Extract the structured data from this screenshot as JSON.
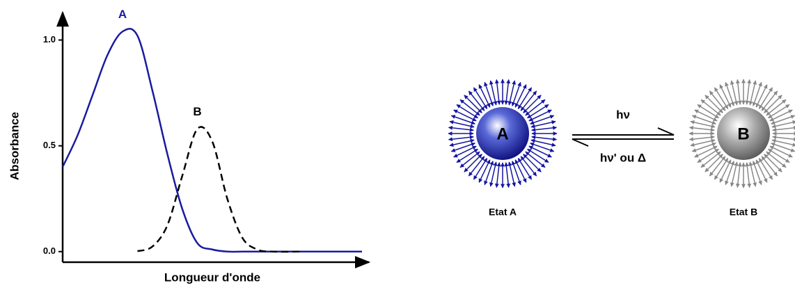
{
  "chart_data": {
    "type": "line",
    "xlabel": "Longueur d'onde",
    "ylabel": "Absorbance",
    "x": [
      0,
      5,
      10,
      15,
      20,
      25,
      30,
      35,
      40,
      45,
      50,
      55,
      60,
      65,
      70,
      80,
      90,
      100
    ],
    "series": [
      {
        "name": "A",
        "color": "#1a1aa0",
        "linestyle": "solid",
        "values": [
          0.4,
          0.55,
          0.74,
          0.93,
          1.04,
          1.02,
          0.76,
          0.46,
          0.2,
          0.04,
          0.01,
          0,
          0,
          0,
          0,
          0,
          0,
          0
        ]
      },
      {
        "name": "B",
        "color": "#000000",
        "linestyle": "dashed",
        "values": [
          null,
          null,
          null,
          null,
          null,
          0.002,
          0.024,
          0.125,
          0.36,
          0.58,
          0.52,
          0.25,
          0.066,
          0.01,
          0,
          0,
          null,
          null
        ]
      }
    ],
    "xlim": [
      0,
      100
    ],
    "ylim": [
      -0.05,
      1.13
    ],
    "yticks": [
      {
        "value": 0,
        "label": "0.0"
      },
      0.5,
      {
        "value": 1,
        "label": "1.0"
      }
    ]
  },
  "diagram": {
    "states": [
      {
        "label": "A",
        "caption": "Etat A"
      },
      {
        "label": "B",
        "caption": "Etat B"
      }
    ],
    "forward": "hν",
    "backward": "hν' ou Δ"
  }
}
